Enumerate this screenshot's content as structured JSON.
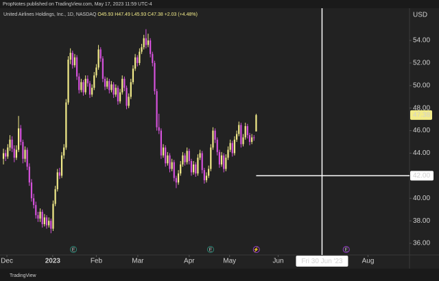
{
  "publisher": "PropNotes published on TradingView.com, May 17, 2023 11:59 UTC-4",
  "footer": "TradingView",
  "chart_data": {
    "type": "candlestick",
    "title": "United Airlines Holdings, Inc., 1D, NASDAQ",
    "ohlc_header": [
      "O45.93",
      "H47.49",
      "L45.93",
      "C47.38",
      "+2.03 (+4.48%)"
    ],
    "currency": "USD",
    "up_color": "#f3ec8a",
    "down_color": "#d552dc",
    "xlim": [
      -1.6,
      188
    ],
    "xticks": [
      {
        "value": 1.6,
        "label": "Dec"
      },
      {
        "value": 22.8,
        "label": "2023"
      },
      {
        "value": 43,
        "label": "Feb"
      },
      {
        "value": 62.2,
        "label": "Mar"
      },
      {
        "value": 86,
        "label": "Apr"
      },
      {
        "value": 104.7,
        "label": "May"
      },
      {
        "value": 127.2,
        "label": "Jun"
      },
      {
        "value": 168.8,
        "label": "Aug"
      }
    ],
    "ylim": [
      34.97,
      56.86
    ],
    "yticks": [
      {
        "value": 36,
        "label": "36.00"
      },
      {
        "value": 38,
        "label": "38.00"
      },
      {
        "value": 40,
        "label": "40.00"
      },
      {
        "value": 42,
        "label": "42.00"
      },
      {
        "value": 44,
        "label": "44.00"
      },
      {
        "value": 46,
        "label": "46.00"
      },
      {
        "value": 48,
        "label": "48.00"
      },
      {
        "value": 50,
        "label": "50.00"
      },
      {
        "value": 52,
        "label": "52.00"
      },
      {
        "value": 54,
        "label": "54.00"
      }
    ],
    "last_price_label": "47.38",
    "crosshair": {
      "x": 147.5,
      "x_label": "Fri 30 Jun '23",
      "y": 42,
      "y_label": "42.00"
    },
    "events": [
      {
        "x": 32.4,
        "label": "E",
        "color": "#2e8b7a"
      },
      {
        "x": 95.9,
        "label": "E",
        "color": "#2e8b7a"
      },
      {
        "x": 117.1,
        "label": "⚡",
        "color": "#9b3fd0"
      },
      {
        "x": 158.7,
        "label": "E",
        "color": "#9b3fd0"
      }
    ],
    "candles": [
      [
        43.5,
        44.4,
        43.0,
        44.0
      ],
      [
        44.0,
        44.3,
        43.3,
        43.7
      ],
      [
        43.7,
        44.8,
        43.5,
        44.5
      ],
      [
        44.5,
        45.6,
        44.2,
        45.2
      ],
      [
        45.2,
        45.5,
        44.1,
        44.4
      ],
      [
        44.4,
        44.7,
        43.2,
        43.6
      ],
      [
        43.6,
        44.7,
        43.4,
        44.3
      ],
      [
        44.3,
        47.3,
        44.1,
        46.2
      ],
      [
        46.2,
        46.5,
        44.7,
        45.0
      ],
      [
        45.0,
        45.2,
        43.1,
        43.5
      ],
      [
        43.5,
        44.6,
        43.2,
        44.3
      ],
      [
        44.3,
        44.5,
        42.5,
        42.8
      ],
      [
        42.8,
        43.1,
        41.1,
        41.4
      ],
      [
        41.4,
        41.7,
        39.7,
        40.0
      ],
      [
        40.0,
        40.4,
        39.1,
        39.4
      ],
      [
        39.4,
        39.7,
        38.2,
        38.5
      ],
      [
        38.5,
        38.8,
        37.9,
        38.2
      ],
      [
        38.2,
        39.1,
        37.9,
        38.8
      ],
      [
        38.8,
        39.0,
        37.4,
        37.7
      ],
      [
        37.7,
        38.6,
        37.5,
        38.3
      ],
      [
        38.3,
        38.5,
        37.3,
        37.6
      ],
      [
        37.6,
        38.3,
        37.4,
        38.0
      ],
      [
        38.0,
        38.2,
        36.9,
        37.3
      ],
      [
        37.3,
        39.8,
        37.1,
        39.5
      ],
      [
        39.5,
        41.1,
        39.3,
        40.8
      ],
      [
        40.8,
        42.6,
        40.6,
        42.3
      ],
      [
        42.3,
        42.7,
        41.7,
        42.0
      ],
      [
        42.0,
        44.1,
        41.8,
        43.8
      ],
      [
        43.8,
        44.8,
        43.5,
        44.5
      ],
      [
        44.5,
        48.8,
        44.3,
        48.5
      ],
      [
        48.5,
        52.6,
        48.3,
        52.3
      ],
      [
        52.3,
        53.3,
        51.9,
        52.9
      ],
      [
        52.9,
        53.1,
        51.5,
        51.8
      ],
      [
        51.8,
        52.8,
        51.6,
        52.5
      ],
      [
        52.5,
        52.7,
        50.5,
        50.8
      ],
      [
        50.8,
        51.1,
        49.3,
        49.6
      ],
      [
        49.6,
        50.6,
        49.4,
        50.3
      ],
      [
        50.3,
        50.5,
        49.1,
        49.4
      ],
      [
        49.4,
        50.9,
        49.2,
        50.6
      ],
      [
        50.6,
        50.9,
        49.9,
        50.2
      ],
      [
        50.2,
        50.4,
        48.9,
        49.2
      ],
      [
        49.2,
        50.1,
        49.0,
        49.8
      ],
      [
        49.8,
        51.2,
        49.6,
        50.9
      ],
      [
        50.9,
        51.9,
        50.7,
        51.6
      ],
      [
        51.6,
        53.6,
        51.4,
        53.2
      ],
      [
        53.2,
        53.4,
        52.1,
        52.4
      ],
      [
        52.4,
        52.6,
        50.3,
        50.6
      ],
      [
        50.6,
        50.8,
        49.6,
        49.9
      ],
      [
        49.9,
        50.7,
        49.7,
        50.4
      ],
      [
        50.4,
        50.6,
        49.3,
        49.6
      ],
      [
        49.6,
        50.4,
        49.4,
        50.1
      ],
      [
        50.1,
        50.3,
        48.9,
        49.2
      ],
      [
        49.2,
        50.1,
        49.0,
        49.8
      ],
      [
        49.8,
        50.0,
        48.3,
        48.6
      ],
      [
        48.6,
        49.7,
        48.4,
        49.4
      ],
      [
        49.4,
        50.9,
        49.2,
        50.6
      ],
      [
        50.6,
        50.8,
        49.5,
        49.8
      ],
      [
        49.8,
        50.0,
        47.9,
        48.2
      ],
      [
        48.2,
        49.3,
        48.0,
        49.0
      ],
      [
        49.0,
        50.6,
        48.8,
        50.3
      ],
      [
        50.3,
        51.8,
        50.1,
        51.5
      ],
      [
        51.5,
        52.8,
        51.3,
        52.5
      ],
      [
        52.5,
        52.7,
        51.7,
        52.0
      ],
      [
        52.0,
        53.3,
        51.8,
        53.0
      ],
      [
        53.0,
        53.7,
        52.8,
        53.4
      ],
      [
        53.4,
        54.5,
        53.2,
        54.2
      ],
      [
        54.2,
        55.0,
        53.3,
        53.6
      ],
      [
        53.6,
        54.6,
        53.4,
        54.0
      ],
      [
        54.0,
        54.2,
        52.5,
        52.8
      ],
      [
        52.8,
        53.0,
        51.7,
        52.0
      ],
      [
        52.0,
        52.2,
        49.2,
        49.5
      ],
      [
        49.5,
        49.7,
        46.0,
        46.3
      ],
      [
        46.3,
        47.5,
        45.7,
        46.0
      ],
      [
        46.0,
        46.2,
        43.5,
        43.8
      ],
      [
        43.8,
        44.8,
        43.6,
        44.5
      ],
      [
        44.5,
        44.7,
        42.8,
        43.1
      ],
      [
        43.1,
        44.1,
        42.9,
        43.8
      ],
      [
        43.8,
        44.0,
        42.3,
        42.6
      ],
      [
        42.6,
        43.5,
        42.4,
        43.2
      ],
      [
        43.2,
        43.4,
        41.5,
        41.8
      ],
      [
        41.8,
        42.0,
        40.9,
        41.4
      ],
      [
        41.4,
        42.5,
        41.2,
        42.2
      ],
      [
        42.2,
        43.3,
        42.0,
        43.0
      ],
      [
        43.0,
        44.1,
        42.8,
        43.8
      ],
      [
        43.8,
        44.0,
        42.9,
        43.2
      ],
      [
        43.2,
        44.5,
        43.0,
        44.2
      ],
      [
        44.2,
        44.4,
        43.0,
        43.3
      ],
      [
        43.3,
        43.5,
        42.0,
        42.3
      ],
      [
        42.3,
        43.3,
        42.1,
        43.0
      ],
      [
        43.0,
        43.2,
        41.9,
        42.2
      ],
      [
        42.2,
        43.9,
        42.0,
        43.6
      ],
      [
        43.6,
        44.3,
        43.4,
        44.0
      ],
      [
        44.0,
        44.2,
        42.2,
        42.5
      ],
      [
        42.5,
        42.7,
        41.3,
        41.6
      ],
      [
        41.6,
        42.3,
        41.4,
        42.0
      ],
      [
        42.0,
        42.9,
        41.8,
        42.6
      ],
      [
        42.6,
        44.8,
        42.4,
        44.5
      ],
      [
        44.5,
        46.3,
        44.3,
        46.0
      ],
      [
        46.0,
        46.2,
        44.9,
        45.2
      ],
      [
        45.2,
        45.4,
        43.8,
        44.1
      ],
      [
        44.1,
        44.3,
        42.7,
        43.0
      ],
      [
        43.0,
        44.1,
        42.8,
        43.8
      ],
      [
        43.8,
        44.0,
        42.3,
        42.6
      ],
      [
        42.6,
        43.9,
        42.4,
        43.6
      ],
      [
        43.6,
        44.6,
        43.4,
        44.3
      ],
      [
        44.3,
        45.2,
        44.1,
        44.9
      ],
      [
        44.9,
        45.1,
        43.7,
        44.0
      ],
      [
        44.0,
        45.5,
        43.8,
        45.2
      ],
      [
        45.2,
        46.0,
        45.0,
        45.7
      ],
      [
        45.7,
        46.8,
        45.5,
        46.5
      ],
      [
        46.5,
        46.7,
        44.5,
        44.8
      ],
      [
        44.8,
        45.7,
        44.6,
        45.4
      ],
      [
        45.4,
        46.7,
        45.2,
        46.4
      ],
      [
        46.4,
        46.6,
        45.3,
        45.6
      ],
      [
        45.6,
        45.8,
        44.7,
        45.0
      ],
      [
        45.0,
        45.7,
        44.8,
        45.4
      ],
      [
        45.4,
        45.6,
        45.1,
        45.35
      ],
      [
        45.93,
        47.49,
        45.93,
        47.38
      ]
    ]
  }
}
